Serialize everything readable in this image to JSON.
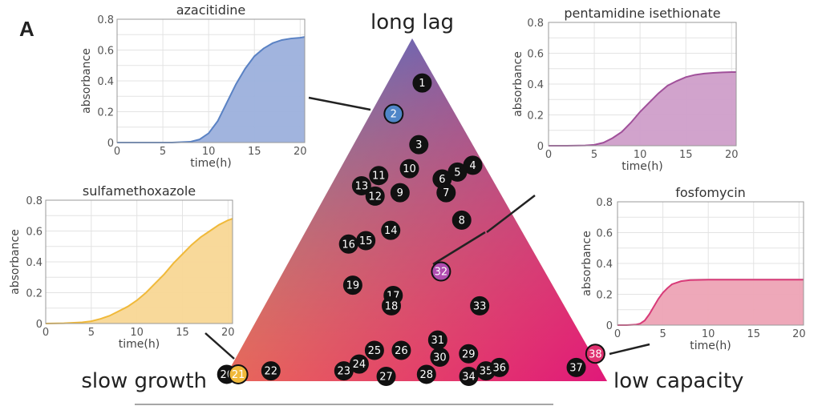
{
  "panel_label": "A",
  "chart_data": [
    {
      "type": "scatter",
      "subtype": "ternary",
      "title": "",
      "vertices": {
        "top": "long lag",
        "bottom_left": "slow growth",
        "bottom_right": "low capacity"
      },
      "vertex_colors": {
        "top": "#4f7fc1",
        "bottom_left": "#f0b93a",
        "bottom_right": "#e0187a"
      },
      "points": [
        {
          "id": "1",
          "u": 0.87,
          "v": 0.09,
          "highlight": false
        },
        {
          "id": "2",
          "u": 0.78,
          "v": 0.06,
          "highlight": true,
          "color": "#4f86c8",
          "links_to": "azacitidine"
        },
        {
          "id": "3",
          "u": 0.69,
          "v": 0.17,
          "highlight": false
        },
        {
          "id": "4",
          "u": 0.63,
          "v": 0.34,
          "highlight": false
        },
        {
          "id": "5",
          "u": 0.61,
          "v": 0.31,
          "highlight": false
        },
        {
          "id": "6",
          "u": 0.59,
          "v": 0.28,
          "highlight": false
        },
        {
          "id": "7",
          "u": 0.55,
          "v": 0.31,
          "highlight": false
        },
        {
          "id": "8",
          "u": 0.47,
          "v": 0.39,
          "highlight": false
        },
        {
          "id": "9",
          "u": 0.55,
          "v": 0.19,
          "highlight": false
        },
        {
          "id": "10",
          "u": 0.62,
          "v": 0.18,
          "highlight": false
        },
        {
          "id": "11",
          "u": 0.6,
          "v": 0.11,
          "highlight": false
        },
        {
          "id": "12",
          "u": 0.54,
          "v": 0.13,
          "highlight": false
        },
        {
          "id": "13",
          "u": 0.57,
          "v": 0.08,
          "highlight": false
        },
        {
          "id": "14",
          "u": 0.44,
          "v": 0.22,
          "highlight": false
        },
        {
          "id": "15",
          "u": 0.41,
          "v": 0.17,
          "highlight": false
        },
        {
          "id": "16",
          "u": 0.4,
          "v": 0.13,
          "highlight": false
        },
        {
          "id": "17",
          "u": 0.25,
          "v": 0.32,
          "highlight": false
        },
        {
          "id": "18",
          "u": 0.22,
          "v": 0.33,
          "highlight": false
        },
        {
          "id": "19",
          "u": 0.28,
          "v": 0.2,
          "highlight": false
        },
        {
          "id": "20",
          "u": 0.02,
          "v": 0.0,
          "highlight": false
        },
        {
          "id": "21",
          "u": 0.02,
          "v": 0.03,
          "highlight": true,
          "color": "#f0b93a",
          "links_to": "sulfamethoxazole"
        },
        {
          "id": "22",
          "u": 0.03,
          "v": 0.11,
          "highlight": false
        },
        {
          "id": "23",
          "u": 0.03,
          "v": 0.3,
          "highlight": false
        },
        {
          "id": "24",
          "u": 0.05,
          "v": 0.33,
          "highlight": false
        },
        {
          "id": "25",
          "u": 0.09,
          "v": 0.35,
          "highlight": false
        },
        {
          "id": "26",
          "u": 0.09,
          "v": 0.42,
          "highlight": false
        },
        {
          "id": "27",
          "u": 0.01,
          "v": 0.42,
          "highlight": false
        },
        {
          "id": "28",
          "u": 0.02,
          "v": 0.52,
          "highlight": false
        },
        {
          "id": "29",
          "u": 0.08,
          "v": 0.6,
          "highlight": false
        },
        {
          "id": "30",
          "u": 0.07,
          "v": 0.53,
          "highlight": false
        },
        {
          "id": "31",
          "u": 0.12,
          "v": 0.5,
          "highlight": false
        },
        {
          "id": "32",
          "u": 0.32,
          "v": 0.41,
          "highlight": true,
          "color": "#b04db0",
          "links_to": "pentamidine isethionate"
        },
        {
          "id": "33",
          "u": 0.22,
          "v": 0.56,
          "highlight": false
        },
        {
          "id": "34",
          "u": 0.0,
          "v": 0.64,
          "highlight": false
        },
        {
          "id": "35",
          "u": 0.03,
          "v": 0.67,
          "highlight": false
        },
        {
          "id": "36",
          "u": 0.04,
          "v": 0.7,
          "highlight": false
        },
        {
          "id": "37",
          "u": 0.04,
          "v": 0.9,
          "highlight": false
        },
        {
          "id": "38",
          "u": 0.08,
          "v": 0.93,
          "highlight": true,
          "color": "#e0306f",
          "links_to": "fosfomycin"
        }
      ]
    },
    {
      "type": "area",
      "title": "azacitidine",
      "xlabel": "time(h)",
      "ylabel": "absorbance",
      "xlim": [
        0,
        20.5
      ],
      "ylim": [
        0,
        0.8
      ],
      "xticks": [
        "0",
        "5",
        "10",
        "15",
        "20"
      ],
      "yticks": [
        "0",
        "0.2",
        "0.4",
        "0.6",
        "0.8"
      ],
      "grid": true,
      "color": "#5a82c4",
      "fill": "#9cb0dc",
      "x": [
        0,
        2,
        4,
        6,
        8,
        9,
        10,
        11,
        12,
        13,
        14,
        15,
        16,
        17,
        18,
        19,
        20,
        20.5
      ],
      "y": [
        0,
        0,
        0,
        0,
        0.005,
        0.02,
        0.06,
        0.14,
        0.26,
        0.38,
        0.48,
        0.56,
        0.61,
        0.645,
        0.665,
        0.675,
        0.68,
        0.685
      ]
    },
    {
      "type": "area",
      "title": "pentamidine isethionate",
      "xlabel": "time(h)",
      "ylabel": "absorbance",
      "xlim": [
        0,
        20.5
      ],
      "ylim": [
        0,
        0.8
      ],
      "xticks": [
        "0",
        "5",
        "10",
        "15",
        "20"
      ],
      "yticks": [
        "0",
        "0.2",
        "0.4",
        "0.6",
        "0.8"
      ],
      "grid": true,
      "color": "#a0509a",
      "fill": "#cf9ec9",
      "x": [
        0,
        2,
        4,
        5,
        6,
        7,
        8,
        9,
        10,
        11,
        12,
        13,
        14,
        15,
        16,
        17,
        18,
        19,
        20,
        20.5
      ],
      "y": [
        0,
        0,
        0.002,
        0.006,
        0.02,
        0.05,
        0.09,
        0.15,
        0.22,
        0.28,
        0.34,
        0.39,
        0.42,
        0.445,
        0.46,
        0.468,
        0.473,
        0.476,
        0.478,
        0.478
      ]
    },
    {
      "type": "area",
      "title": "sulfamethoxazole",
      "xlabel": "time(h)",
      "ylabel": "absorbance",
      "xlim": [
        0,
        20.5
      ],
      "ylim": [
        0,
        0.8
      ],
      "xticks": [
        "0",
        "5",
        "10",
        "15",
        "20"
      ],
      "yticks": [
        "0",
        "0.2",
        "0.4",
        "0.6",
        "0.8"
      ],
      "grid": true,
      "color": "#f0b93a",
      "fill": "#f8d795",
      "x": [
        0,
        2,
        4,
        5,
        6,
        7,
        8,
        9,
        10,
        11,
        12,
        13,
        14,
        15,
        16,
        17,
        18,
        19,
        20,
        20.5
      ],
      "y": [
        0,
        0.002,
        0.008,
        0.015,
        0.03,
        0.05,
        0.08,
        0.11,
        0.15,
        0.2,
        0.26,
        0.32,
        0.39,
        0.45,
        0.51,
        0.56,
        0.6,
        0.64,
        0.67,
        0.68
      ]
    },
    {
      "type": "area",
      "title": "fosfomycin",
      "xlabel": "time(h)",
      "ylabel": "absorbance",
      "xlim": [
        0,
        20.5
      ],
      "ylim": [
        0,
        0.8
      ],
      "xticks": [
        "0",
        "5",
        "10",
        "15",
        "20"
      ],
      "yticks": [
        "0",
        "0.2",
        "0.4",
        "0.6",
        "0.8"
      ],
      "grid": true,
      "color": "#d83a78",
      "fill": "#eda3b5",
      "x": [
        0,
        1,
        2,
        2.5,
        3,
        3.5,
        4,
        4.5,
        5,
        5.5,
        6,
        7,
        8,
        10,
        15,
        20,
        20.5
      ],
      "y": [
        0,
        0,
        0.003,
        0.01,
        0.03,
        0.07,
        0.12,
        0.17,
        0.21,
        0.24,
        0.265,
        0.285,
        0.292,
        0.295,
        0.295,
        0.295,
        0.295
      ]
    }
  ]
}
